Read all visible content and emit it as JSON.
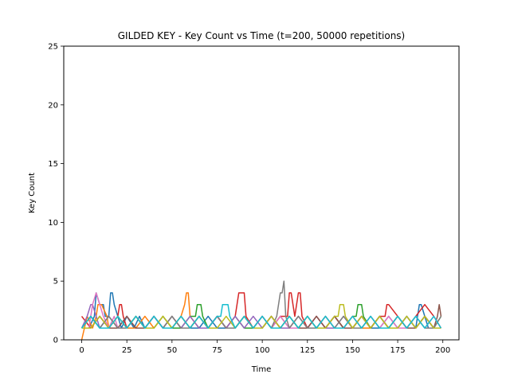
{
  "chart_data": {
    "type": "line",
    "title": "GILDED KEY - Key Count vs Time (t=200, 50000 repetitions)",
    "xlabel": "Time",
    "ylabel": "Key Count",
    "xlim": [
      -9.95,
      208.95
    ],
    "ylim": [
      0,
      25
    ],
    "xticks": [
      0,
      25,
      50,
      75,
      100,
      125,
      150,
      175,
      200
    ],
    "yticks": [
      0,
      5,
      10,
      15,
      20,
      25
    ],
    "grid": false,
    "legend": "none",
    "palette": [
      "#1f77b4",
      "#ff7f0e",
      "#2ca02c",
      "#d62728",
      "#9467bd",
      "#8c564b",
      "#e377c2",
      "#7f7f7f",
      "#bcbd22",
      "#17becf"
    ],
    "series": [
      {
        "color": "#1f77b4",
        "x": [
          0,
          4,
          7,
          8,
          10,
          12,
          13,
          15,
          16,
          17,
          18,
          22,
          25,
          29,
          32,
          35,
          40,
          45,
          50,
          55,
          60,
          65,
          70,
          75,
          80,
          85,
          90,
          95,
          100,
          105,
          110,
          115,
          120,
          125,
          130,
          135,
          140,
          145,
          150,
          155,
          160,
          165,
          170,
          175,
          180,
          185,
          187,
          188,
          190,
          192,
          195,
          199
        ],
        "y": [
          1,
          1,
          2,
          4,
          3,
          3,
          2,
          2,
          4,
          4,
          3,
          1,
          2,
          1,
          2,
          1,
          2,
          1,
          1,
          2,
          1,
          1,
          2,
          1,
          1,
          1,
          2,
          1,
          1,
          2,
          1,
          2,
          1,
          2,
          1,
          1,
          2,
          1,
          1,
          2,
          1,
          1,
          2,
          1,
          2,
          1,
          3,
          3,
          2,
          1,
          1,
          1
        ]
      },
      {
        "color": "#ff7f0e",
        "x": [
          0,
          3,
          6,
          8,
          9,
          11,
          14,
          15,
          20,
          25,
          30,
          35,
          40,
          45,
          50,
          55,
          57,
          58,
          59,
          60,
          65,
          70,
          75,
          80,
          85,
          90,
          95,
          100,
          105,
          110,
          115,
          120,
          125,
          130,
          135,
          140,
          145,
          150,
          155,
          160,
          165,
          170,
          175,
          180,
          185,
          190,
          195,
          199
        ],
        "y": [
          0,
          2,
          1,
          2,
          3,
          3,
          2,
          1,
          2,
          1,
          1,
          2,
          1,
          2,
          1,
          2,
          3,
          4,
          4,
          2,
          1,
          1,
          2,
          1,
          1,
          2,
          1,
          1,
          2,
          1,
          1,
          2,
          1,
          1,
          2,
          1,
          1,
          2,
          1,
          1,
          2,
          1,
          2,
          1,
          1,
          2,
          1,
          1
        ]
      },
      {
        "color": "#2ca02c",
        "x": [
          0,
          5,
          10,
          15,
          20,
          25,
          30,
          35,
          40,
          45,
          50,
          55,
          60,
          63,
          64,
          66,
          67,
          70,
          75,
          80,
          85,
          90,
          95,
          100,
          105,
          110,
          115,
          120,
          125,
          130,
          135,
          140,
          145,
          150,
          152,
          153,
          155,
          156,
          160,
          165,
          170,
          175,
          180,
          185,
          190,
          195,
          199
        ],
        "y": [
          1,
          2,
          1,
          2,
          1,
          1,
          2,
          1,
          1,
          2,
          1,
          1,
          2,
          2,
          3,
          3,
          2,
          1,
          2,
          1,
          2,
          1,
          1,
          2,
          1,
          2,
          1,
          1,
          2,
          1,
          1,
          2,
          1,
          2,
          2,
          3,
          3,
          2,
          1,
          2,
          1,
          1,
          2,
          1,
          2,
          1,
          2
        ]
      },
      {
        "color": "#d62728",
        "x": [
          0,
          5,
          10,
          15,
          20,
          21,
          22,
          23,
          25,
          30,
          35,
          40,
          45,
          50,
          55,
          60,
          65,
          70,
          75,
          80,
          85,
          86,
          87,
          90,
          91,
          95,
          100,
          105,
          110,
          114,
          115,
          116,
          118,
          120,
          121,
          122,
          125,
          130,
          135,
          140,
          145,
          150,
          155,
          160,
          165,
          168,
          169,
          170,
          175,
          180,
          185,
          190,
          195,
          199
        ],
        "y": [
          2,
          1,
          2,
          1,
          2,
          3,
          3,
          2,
          1,
          2,
          1,
          2,
          1,
          1,
          2,
          1,
          2,
          1,
          2,
          1,
          2,
          3,
          4,
          4,
          2,
          1,
          2,
          1,
          2,
          2,
          4,
          4,
          2,
          4,
          4,
          2,
          1,
          2,
          1,
          2,
          1,
          1,
          2,
          1,
          2,
          2,
          3,
          3,
          2,
          1,
          2,
          3,
          2,
          1
        ]
      },
      {
        "color": "#9467bd",
        "x": [
          0,
          3,
          5,
          6,
          8,
          10,
          15,
          20,
          25,
          30,
          35,
          40,
          45,
          50,
          55,
          60,
          65,
          70,
          75,
          80,
          85,
          90,
          95,
          100,
          105,
          110,
          115,
          120,
          125,
          130,
          135,
          140,
          145,
          150,
          155,
          160,
          165,
          170,
          175,
          180,
          185,
          190,
          195,
          199
        ],
        "y": [
          1,
          2,
          3,
          3,
          2,
          1,
          2,
          1,
          2,
          1,
          1,
          2,
          1,
          2,
          1,
          2,
          1,
          1,
          2,
          1,
          2,
          1,
          2,
          1,
          2,
          1,
          1,
          2,
          1,
          2,
          1,
          1,
          2,
          1,
          2,
          1,
          2,
          1,
          1,
          2,
          1,
          2,
          1,
          1
        ]
      },
      {
        "color": "#8c564b",
        "x": [
          0,
          5,
          10,
          15,
          20,
          25,
          30,
          35,
          40,
          45,
          50,
          55,
          60,
          65,
          70,
          75,
          80,
          85,
          90,
          95,
          100,
          105,
          110,
          115,
          120,
          125,
          130,
          135,
          140,
          145,
          150,
          155,
          160,
          165,
          170,
          175,
          180,
          185,
          190,
          195,
          197,
          198,
          199
        ],
        "y": [
          1,
          1,
          2,
          1,
          1,
          2,
          1,
          1,
          2,
          1,
          2,
          1,
          1,
          2,
          1,
          2,
          1,
          1,
          2,
          1,
          1,
          2,
          1,
          2,
          1,
          1,
          2,
          1,
          2,
          1,
          1,
          2,
          1,
          2,
          1,
          2,
          1,
          1,
          2,
          1,
          2,
          3,
          2
        ]
      },
      {
        "color": "#e377c2",
        "x": [
          0,
          4,
          6,
          8,
          10,
          12,
          15,
          18,
          20,
          25,
          30,
          35,
          40,
          45,
          50,
          55,
          60,
          65,
          70,
          75,
          80,
          85,
          90,
          95,
          100,
          105,
          110,
          115,
          120,
          125,
          130,
          135,
          140,
          145,
          150,
          155,
          160,
          165,
          170,
          175,
          180,
          185,
          190,
          195,
          199
        ],
        "y": [
          1,
          1,
          3,
          4,
          3,
          2,
          1,
          2,
          1,
          1,
          2,
          1,
          2,
          1,
          1,
          2,
          1,
          2,
          1,
          2,
          1,
          1,
          2,
          1,
          2,
          1,
          2,
          1,
          1,
          2,
          1,
          2,
          1,
          1,
          2,
          1,
          2,
          1,
          2,
          1,
          1,
          2,
          1,
          2,
          1
        ]
      },
      {
        "color": "#7f7f7f",
        "x": [
          0,
          5,
          10,
          15,
          20,
          25,
          30,
          35,
          40,
          45,
          50,
          55,
          60,
          65,
          70,
          75,
          80,
          85,
          90,
          95,
          100,
          105,
          108,
          109,
          110,
          111,
          112,
          113,
          115,
          120,
          125,
          130,
          135,
          140,
          145,
          150,
          155,
          160,
          165,
          170,
          175,
          180,
          185,
          190,
          195,
          199
        ],
        "y": [
          1,
          2,
          1,
          2,
          1,
          1,
          2,
          1,
          2,
          1,
          2,
          1,
          1,
          2,
          1,
          2,
          1,
          1,
          2,
          1,
          2,
          1,
          2,
          3,
          4,
          4,
          5,
          2,
          1,
          2,
          1,
          1,
          2,
          1,
          2,
          1,
          1,
          2,
          1,
          1,
          2,
          1,
          2,
          1,
          1,
          2
        ]
      },
      {
        "color": "#bcbd22",
        "x": [
          0,
          5,
          10,
          15,
          20,
          25,
          30,
          35,
          40,
          45,
          50,
          55,
          60,
          65,
          70,
          75,
          80,
          85,
          90,
          95,
          100,
          105,
          110,
          115,
          120,
          125,
          130,
          135,
          140,
          142,
          143,
          145,
          146,
          150,
          155,
          160,
          165,
          170,
          175,
          180,
          185,
          190,
          195,
          199
        ],
        "y": [
          1,
          1,
          2,
          1,
          2,
          1,
          2,
          1,
          1,
          2,
          1,
          2,
          1,
          2,
          1,
          1,
          2,
          1,
          2,
          1,
          1,
          2,
          1,
          2,
          1,
          2,
          1,
          1,
          2,
          2,
          3,
          3,
          2,
          1,
          2,
          1,
          2,
          1,
          1,
          2,
          1,
          2,
          1,
          1
        ]
      },
      {
        "color": "#17becf",
        "x": [
          0,
          5,
          10,
          15,
          20,
          25,
          30,
          35,
          40,
          45,
          50,
          55,
          60,
          65,
          70,
          75,
          77,
          78,
          80,
          81,
          82,
          85,
          90,
          95,
          100,
          105,
          110,
          115,
          120,
          125,
          130,
          135,
          140,
          145,
          150,
          155,
          160,
          165,
          170,
          175,
          180,
          185,
          190,
          195,
          199
        ],
        "y": [
          1,
          2,
          1,
          1,
          2,
          1,
          2,
          1,
          2,
          1,
          1,
          2,
          1,
          2,
          1,
          2,
          2,
          3,
          3,
          3,
          2,
          1,
          2,
          1,
          2,
          1,
          1,
          2,
          1,
          2,
          1,
          2,
          1,
          1,
          2,
          1,
          2,
          1,
          1,
          2,
          1,
          2,
          1,
          2,
          1
        ]
      }
    ]
  }
}
